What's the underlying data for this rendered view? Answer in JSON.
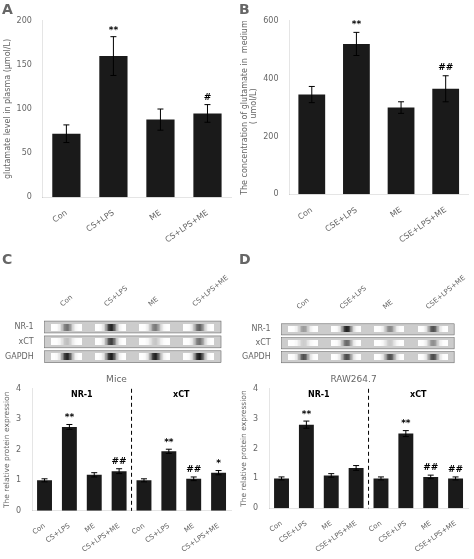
{
  "chart_data": [
    {
      "type": "bar",
      "title": "A",
      "categories": [
        "Con",
        "CS+LPS",
        "ME",
        "CS+LPS+ME"
      ],
      "values": [
        72,
        160,
        88,
        95
      ],
      "errors": [
        10,
        22,
        12,
        10
      ],
      "ylabel": "glutamate level in plasma (μmol/L)",
      "ylim": [
        0,
        200
      ],
      "yticks": [
        0,
        50,
        100,
        150,
        200
      ],
      "color": "#1a1a1a",
      "grid": false,
      "annotations": [
        {
          "text": "**",
          "x": "CS+LPS",
          "y": 183
        },
        {
          "text": "#",
          "x": "CS+LPS+ME",
          "y": 107
        }
      ]
    },
    {
      "type": "bar",
      "title": "B",
      "categories": [
        "Con",
        "CSE+LPS",
        "ME",
        "CSE+LPS+ME"
      ],
      "values": [
        345,
        520,
        300,
        365
      ],
      "errors": [
        28,
        40,
        20,
        45
      ],
      "ylabel": "The concentration of glutamate in  medium\n ( umol/L)",
      "ylim": [
        0,
        600
      ],
      "yticks": [
        0,
        200,
        400,
        600
      ],
      "color": "#1a1a1a",
      "grid": false,
      "annotations": [
        {
          "text": "**",
          "x": "CSE+LPS",
          "y": 568
        },
        {
          "text": "##",
          "x": "CSE+LPS+ME",
          "y": 418
        }
      ]
    },
    {
      "type": "heatmap",
      "title": "C",
      "x": [
        "Con",
        "CS+LPS",
        "ME",
        "CS+LPS+ME"
      ],
      "y": [
        "NR-1",
        "xCT",
        "GAPDH"
      ],
      "cells": [
        [
          0.55,
          0.85,
          0.52,
          0.62
        ],
        [
          0.25,
          0.75,
          0.22,
          0.55
        ],
        [
          0.85,
          0.88,
          0.86,
          0.9
        ]
      ],
      "grid": false
    },
    {
      "type": "bar",
      "title": "Mice",
      "categories": [
        "Con",
        "CS+LPS",
        "ME",
        "CS+LPS+ME"
      ],
      "series": [
        {
          "name": "NR-1",
          "values": [
            1.0,
            2.75,
            1.18,
            1.3
          ],
          "errors": [
            0.05,
            0.08,
            0.07,
            0.08
          ],
          "annotations": [
            {
              "text": "**",
              "x": "CS+LPS",
              "y": 2.87
            },
            {
              "text": "##",
              "x": "CS+LPS+ME",
              "y": 1.42
            }
          ]
        },
        {
          "name": "xCT",
          "values": [
            1.0,
            1.95,
            1.05,
            1.25
          ],
          "errors": [
            0.05,
            0.07,
            0.06,
            0.07
          ],
          "annotations": [
            {
              "text": "**",
              "x": "CS+LPS",
              "y": 2.07
            },
            {
              "text": "##",
              "x": "ME",
              "y": 1.16
            },
            {
              "text": "*",
              "x": "CS+LPS+ME",
              "y": 1.37
            }
          ]
        }
      ],
      "ylabel": "The relative protein expression",
      "ylim": [
        0,
        4
      ],
      "yticks": [
        0,
        1,
        2,
        3,
        4
      ],
      "color": "#1a1a1a",
      "grid": false
    },
    {
      "type": "heatmap",
      "title": "D",
      "x": [
        "Con",
        "CSE+LPS",
        "ME",
        "CSE+LPS+ME"
      ],
      "y": [
        "NR-1",
        "xCT",
        "GAPDH"
      ],
      "cells": [
        [
          0.4,
          0.88,
          0.48,
          0.7
        ],
        [
          0.2,
          0.6,
          0.22,
          0.45
        ],
        [
          0.7,
          0.72,
          0.7,
          0.72
        ]
      ],
      "grid": false
    },
    {
      "type": "bar",
      "title": "RAW264.7",
      "categories": [
        "Con",
        "CSE+LPS",
        "ME",
        "CSE+LPS+ME"
      ],
      "series": [
        {
          "name": "NR-1",
          "values": [
            1.0,
            2.8,
            1.1,
            1.35
          ],
          "errors": [
            0.05,
            0.12,
            0.06,
            0.08
          ],
          "annotations": [
            {
              "text": "**",
              "x": "CSE+LPS",
              "y": 2.96
            }
          ]
        },
        {
          "name": "xCT",
          "values": [
            1.0,
            2.5,
            1.05,
            1.0
          ],
          "errors": [
            0.05,
            0.1,
            0.06,
            0.05
          ],
          "annotations": [
            {
              "text": "**",
              "x": "CSE+LPS",
              "y": 2.65
            },
            {
              "text": "##",
              "x": "ME",
              "y": 1.16
            },
            {
              "text": "##",
              "x": "CSE+LPS+ME",
              "y": 1.12
            }
          ]
        }
      ],
      "ylabel": "The relative protein expression",
      "ylim": [
        0,
        4
      ],
      "yticks": [
        0,
        1,
        2,
        3,
        4
      ],
      "color": "#1a1a1a",
      "grid": false
    }
  ]
}
